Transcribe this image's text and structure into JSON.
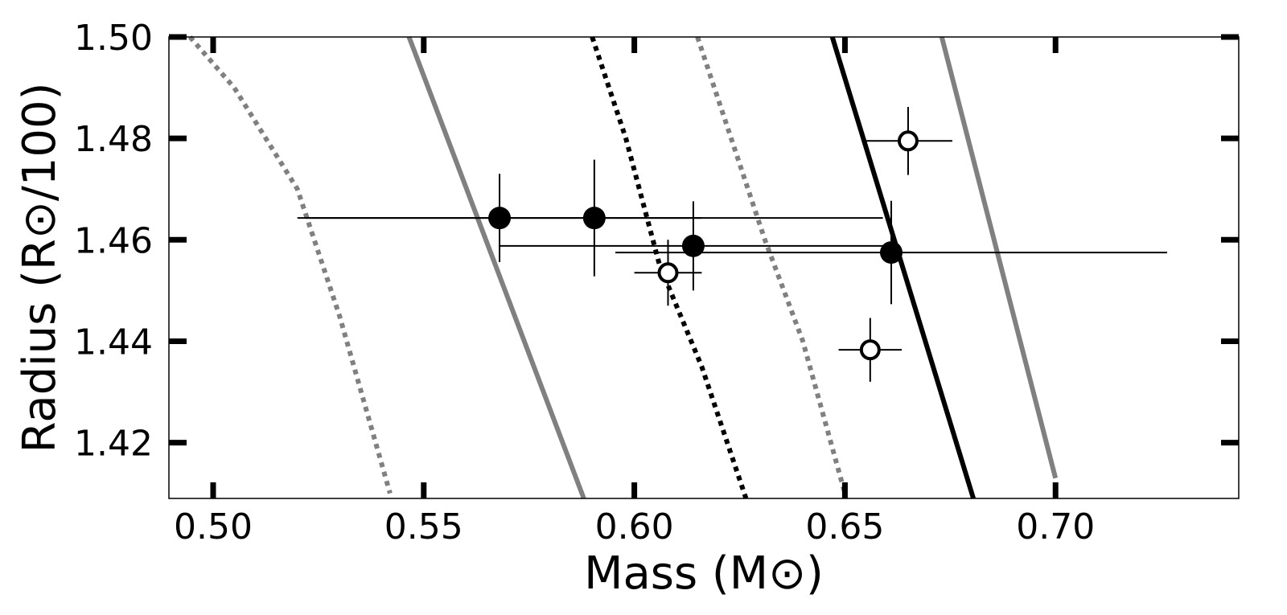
{
  "chart_data": {
    "type": "scatter",
    "xlabel": "Mass (M⊙)",
    "ylabel": "Radius (R⊙/100)",
    "xlim": [
      0.4895,
      0.7435
    ],
    "ylim": [
      1.409,
      1.5
    ],
    "xticks": [
      {
        "value": 0.5,
        "label": "0.50"
      },
      {
        "value": 0.55,
        "label": "0.55"
      },
      {
        "value": 0.6,
        "label": "0.60"
      },
      {
        "value": 0.65,
        "label": "0.65"
      },
      {
        "value": 0.7,
        "label": "0.70"
      }
    ],
    "yticks": [
      {
        "value": 1.42,
        "label": "1.42"
      },
      {
        "value": 1.44,
        "label": "1.44"
      },
      {
        "value": 1.46,
        "label": "1.46"
      },
      {
        "value": 1.48,
        "label": "1.48"
      },
      {
        "value": 1.5,
        "label": "1.50"
      }
    ],
    "grid": false,
    "curves": [
      {
        "style": "dotted",
        "color": "#808080",
        "points": [
          [
            0.4945,
            1.5
          ],
          [
            0.505,
            1.49
          ],
          [
            0.52,
            1.47
          ],
          [
            0.53,
            1.445
          ],
          [
            0.542,
            1.41
          ]
        ]
      },
      {
        "style": "solid",
        "color": "#808080",
        "points": [
          [
            0.5465,
            1.5
          ],
          [
            0.588,
            1.409
          ]
        ]
      },
      {
        "style": "dotted",
        "color": "#000000",
        "points": [
          [
            0.59,
            1.5
          ],
          [
            0.598,
            1.48
          ],
          [
            0.606,
            1.455
          ],
          [
            0.616,
            1.435
          ],
          [
            0.6265,
            1.409
          ]
        ]
      },
      {
        "style": "dotted",
        "color": "#808080",
        "points": [
          [
            0.615,
            1.5
          ],
          [
            0.623,
            1.48
          ],
          [
            0.631,
            1.46
          ],
          [
            0.64,
            1.44
          ],
          [
            0.65,
            1.41
          ]
        ]
      },
      {
        "style": "solid",
        "color": "#000000",
        "points": [
          [
            0.647,
            1.5
          ],
          [
            0.6805,
            1.409
          ]
        ]
      },
      {
        "style": "solid",
        "color": "#808080",
        "points": [
          [
            0.673,
            1.5
          ],
          [
            0.7,
            1.413
          ]
        ]
      }
    ],
    "points": [
      {
        "x": 0.568,
        "y": 1.4643,
        "xerr": 0.048,
        "yerr": 0.0087,
        "filled": true
      },
      {
        "x": 0.5905,
        "y": 1.4643,
        "xerr": 0.0685,
        "yerr": 0.0115,
        "filled": true
      },
      {
        "x": 0.614,
        "y": 1.4588,
        "xerr": 0.046,
        "yerr": 0.0088,
        "filled": true
      },
      {
        "x": 0.661,
        "y": 1.4575,
        "xerr": 0.0655,
        "yerr": 0.0102,
        "filled": true
      },
      {
        "x": 0.608,
        "y": 1.4535,
        "xerr": 0.008,
        "yerr": 0.0065,
        "filled": false
      },
      {
        "x": 0.656,
        "y": 1.4383,
        "xerr": 0.0075,
        "yerr": 0.0063,
        "filled": false
      },
      {
        "x": 0.665,
        "y": 1.4795,
        "xerr": 0.0105,
        "yerr": 0.0067,
        "filled": false
      }
    ]
  }
}
